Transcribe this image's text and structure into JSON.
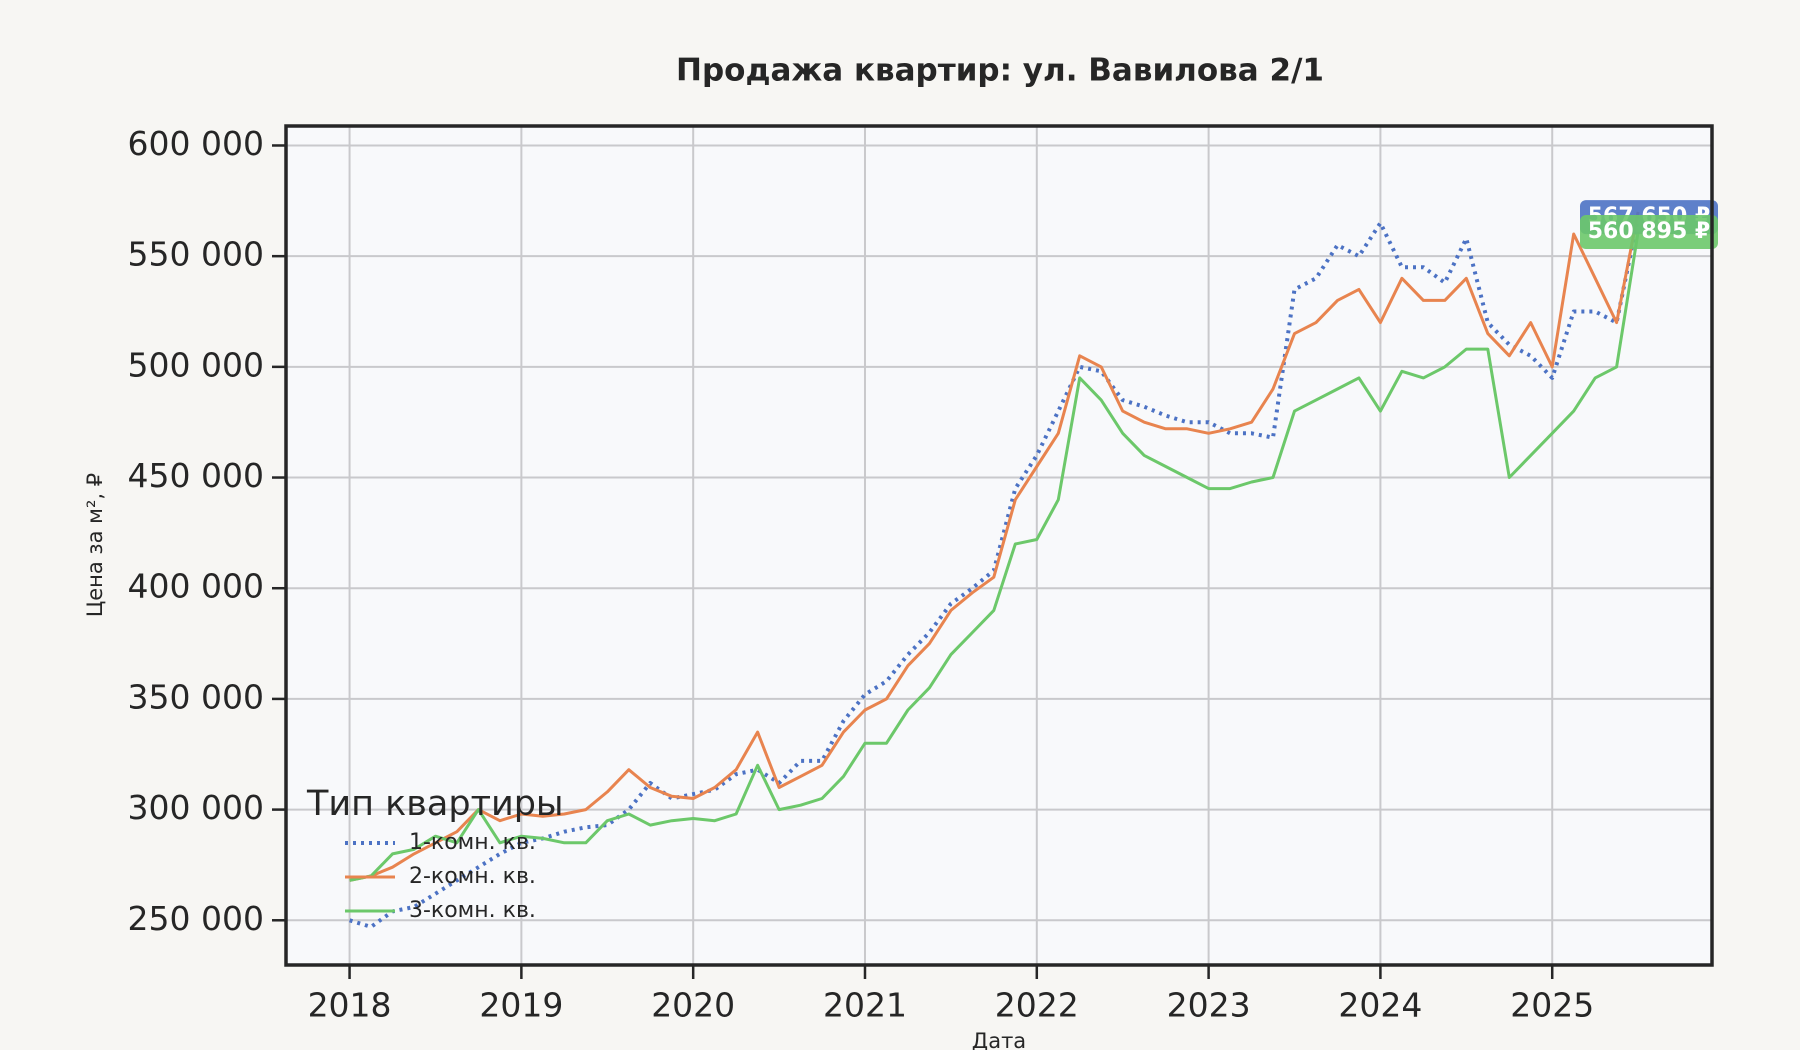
{
  "chart_data": {
    "type": "line",
    "title": "Продажа квартир: ул. Вавилова 2/1",
    "xlabel": "Дата",
    "ylabel": "Цена за м², ₽",
    "x": [
      2018,
      2018.125,
      2018.25,
      2018.375,
      2018.5,
      2018.625,
      2018.75,
      2018.875,
      2019,
      2019.125,
      2019.25,
      2019.375,
      2019.5,
      2019.625,
      2019.75,
      2019.875,
      2020,
      2020.125,
      2020.25,
      2020.375,
      2020.5,
      2020.625,
      2020.75,
      2020.875,
      2021,
      2021.125,
      2021.25,
      2021.375,
      2021.5,
      2021.625,
      2021.75,
      2021.875,
      2022,
      2022.125,
      2022.25,
      2022.375,
      2022.5,
      2022.625,
      2022.75,
      2022.875,
      2023,
      2023.125,
      2023.25,
      2023.375,
      2023.5,
      2023.625,
      2023.75,
      2023.875,
      2024,
      2024.125,
      2024.25,
      2024.375,
      2024.5,
      2024.625,
      2024.75,
      2024.875,
      2025,
      2025.125,
      2025.25,
      2025.375,
      2025.5
    ],
    "series": [
      {
        "name": "1-комн. кв.",
        "color": "#4c72c4",
        "style": "dotted",
        "values": [
          250000,
          247000,
          254000,
          256000,
          262000,
          268000,
          274000,
          280000,
          285000,
          287000,
          290000,
          292000,
          293000,
          300000,
          312000,
          305000,
          307000,
          309000,
          316000,
          318000,
          312000,
          322000,
          322000,
          340000,
          352000,
          358000,
          370000,
          380000,
          393000,
          400000,
          408000,
          445000,
          460000,
          480000,
          500000,
          498000,
          485000,
          482000,
          478000,
          475000,
          475000,
          470000,
          470000,
          468000,
          535000,
          540000,
          555000,
          550000,
          565000,
          545000,
          545000,
          538000,
          558000,
          520000,
          510000,
          505000,
          495000,
          525000,
          525000,
          520000,
          567650
        ]
      },
      {
        "name": "2-комн. кв.",
        "color": "#e8844f",
        "style": "solid",
        "values": [
          268000,
          270000,
          274000,
          280000,
          285000,
          290000,
          300000,
          295000,
          298000,
          297000,
          298000,
          300000,
          308000,
          318000,
          310000,
          306000,
          305000,
          310000,
          318000,
          335000,
          310000,
          315000,
          320000,
          335000,
          345000,
          350000,
          365000,
          375000,
          390000,
          398000,
          405000,
          440000,
          455000,
          470000,
          505000,
          500000,
          480000,
          475000,
          472000,
          472000,
          470000,
          472000,
          475000,
          490000,
          515000,
          520000,
          530000,
          535000,
          520000,
          540000,
          530000,
          530000,
          540000,
          515000,
          505000,
          520000,
          500000,
          560000,
          540000,
          520000,
          570000
        ]
      },
      {
        "name": "3-комн. кв.",
        "color": "#6cc86a",
        "style": "solid",
        "values": [
          268000,
          270000,
          280000,
          282000,
          288000,
          285000,
          300000,
          285000,
          288000,
          287000,
          285000,
          285000,
          295000,
          298000,
          293000,
          295000,
          296000,
          295000,
          298000,
          320000,
          300000,
          302000,
          305000,
          315000,
          330000,
          330000,
          345000,
          355000,
          370000,
          380000,
          390000,
          420000,
          422000,
          440000,
          495000,
          485000,
          470000,
          460000,
          455000,
          450000,
          445000,
          445000,
          448000,
          450000,
          480000,
          485000,
          490000,
          495000,
          480000,
          498000,
          495000,
          500000,
          508000,
          508000,
          450000,
          460000,
          470000,
          480000,
          495000,
          500000,
          560895
        ]
      }
    ],
    "annotations": [
      {
        "text": "567 650 ₽",
        "value": 567650,
        "color": "#4c72c4"
      },
      {
        "text": "560 895 ₽",
        "value": 560895,
        "color": "#6cc86a"
      }
    ],
    "legend_title": "Тип квартиры",
    "legend": "lower left",
    "grid": true,
    "xlim": [
      2017.63,
      2025.93
    ],
    "xticks": [
      2018,
      2019,
      2020,
      2021,
      2022,
      2023,
      2024,
      2025
    ],
    "ylim": [
      229800,
      608800
    ],
    "yticks": [
      {
        "value": 250000,
        "label": "250 000"
      },
      {
        "value": 300000,
        "label": "300 000"
      },
      {
        "value": 350000,
        "label": "350 000"
      },
      {
        "value": 400000,
        "label": "400 000"
      },
      {
        "value": 450000,
        "label": "450 000"
      },
      {
        "value": 500000,
        "label": "500 000"
      },
      {
        "value": 550000,
        "label": "550 000"
      },
      {
        "value": 600000,
        "label": "600 000"
      }
    ]
  }
}
